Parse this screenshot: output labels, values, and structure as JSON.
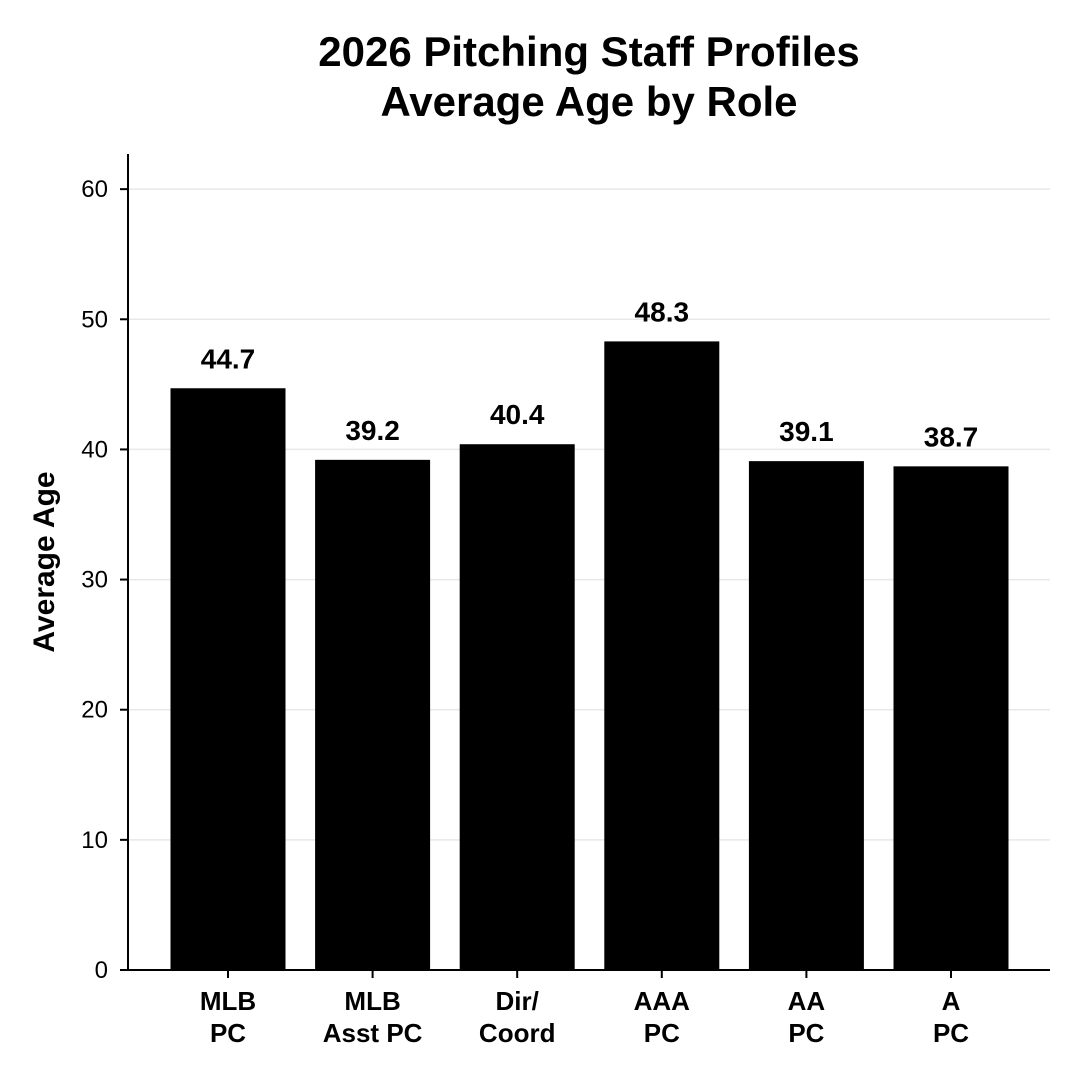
{
  "chart_data": {
    "type": "bar",
    "title_lines": [
      "2026 Pitching Staff Profiles",
      "Average Age by Role"
    ],
    "xlabel": "",
    "ylabel": "Average Age",
    "categories": [
      [
        "MLB",
        "PC"
      ],
      [
        "MLB",
        "Asst PC"
      ],
      [
        "Dir/",
        "Coord"
      ],
      [
        "AAA",
        "PC"
      ],
      [
        "AA",
        "PC"
      ],
      [
        "A",
        "PC"
      ]
    ],
    "values": [
      44.7,
      39.2,
      40.4,
      48.3,
      39.1,
      38.7
    ],
    "value_labels": [
      "44.7",
      "39.2",
      "40.4",
      "48.3",
      "39.1",
      "38.7"
    ],
    "ylim": [
      0,
      62.7
    ],
    "yticks": [
      0,
      10,
      20,
      30,
      40,
      50,
      60
    ],
    "grid": true,
    "bar_color": "#000000",
    "legend": "none"
  }
}
